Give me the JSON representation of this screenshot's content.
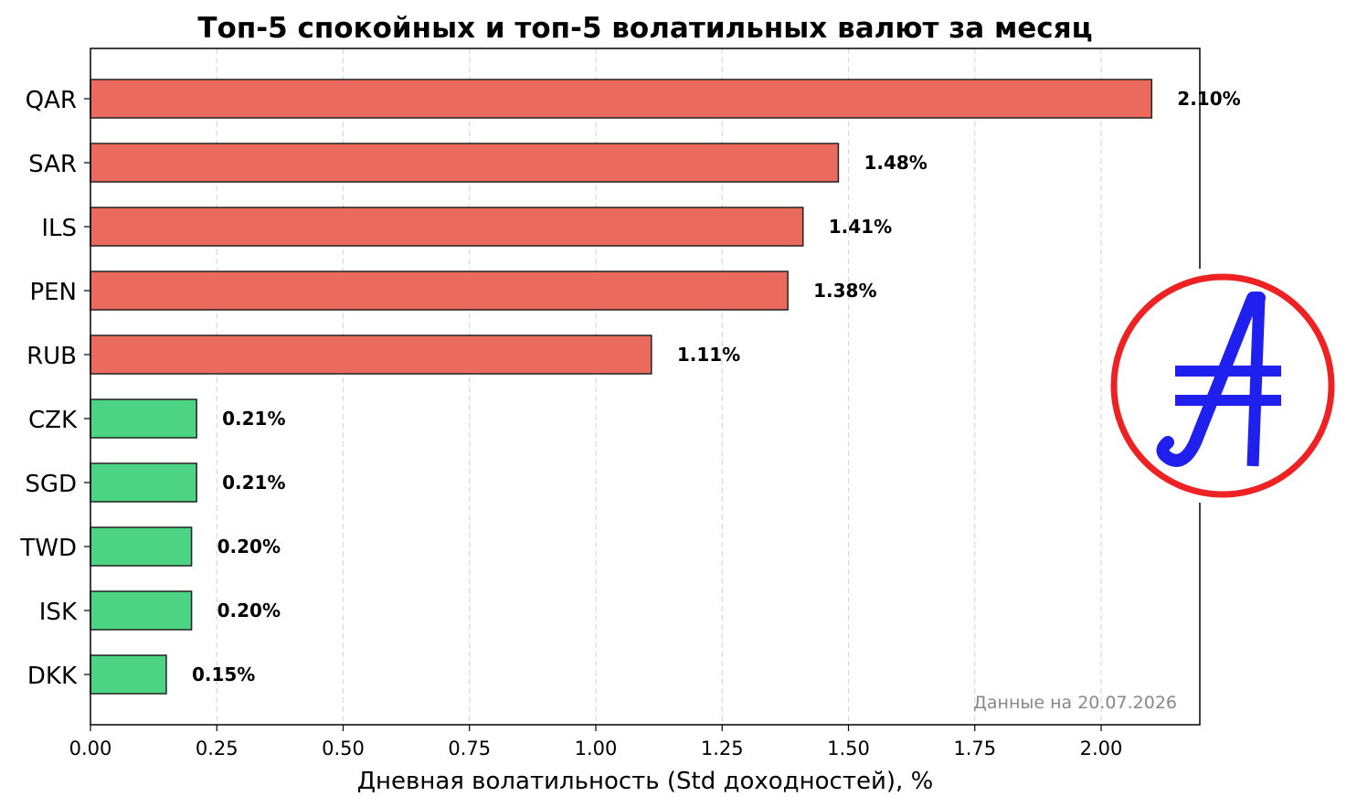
{
  "chart_data": {
    "type": "bar",
    "orientation": "horizontal",
    "title": "Топ-5 спокойных и топ-5 волатильных валют за месяц",
    "xlabel": "Дневная волатильность (Std доходностей), %",
    "ylabel": "",
    "categories": [
      "QAR",
      "SAR",
      "ILS",
      "PEN",
      "RUB",
      "CZK",
      "SGD",
      "TWD",
      "ISK",
      "DKK"
    ],
    "values": [
      2.1,
      1.48,
      1.41,
      1.38,
      1.11,
      0.21,
      0.21,
      0.2,
      0.2,
      0.15
    ],
    "value_labels": [
      "2.10%",
      "1.48%",
      "1.41%",
      "1.38%",
      "1.11%",
      "0.21%",
      "0.21%",
      "0.20%",
      "0.20%",
      "0.15%"
    ],
    "bar_groups": [
      "volatile",
      "volatile",
      "volatile",
      "volatile",
      "volatile",
      "calm",
      "calm",
      "calm",
      "calm",
      "calm"
    ],
    "colors": {
      "volatile": "#eb6a5e",
      "calm": "#4dd384",
      "bar_edge": "#222222"
    },
    "xlim": [
      0,
      2.2
    ],
    "xticks": [
      0.0,
      0.25,
      0.5,
      0.75,
      1.0,
      1.25,
      1.5,
      1.75,
      2.0
    ],
    "xtick_labels": [
      "0.00",
      "0.25",
      "0.50",
      "0.75",
      "1.00",
      "1.25",
      "1.50",
      "1.75",
      "2.00"
    ],
    "grid": "vertical dashed",
    "annotation": "Данные на 20.07.2026",
    "logo": {
      "ring_color": "#ee2222",
      "glyph_color": "#1f1fee",
      "glyph": "currency-A-icon"
    }
  }
}
